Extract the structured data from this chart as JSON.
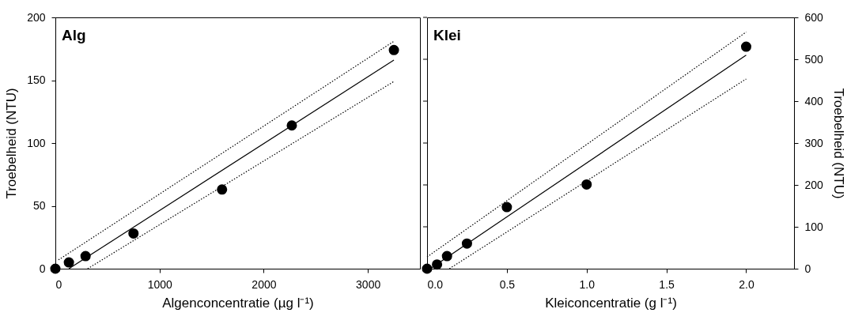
{
  "chart_data": [
    {
      "type": "scatter",
      "title": "Alg",
      "xlabel": "Algenconcentratie (µg l⁻¹)",
      "ylabel": "Troebelheid (NTU)",
      "xlim": [
        0,
        3500
      ],
      "ylim": [
        0,
        200
      ],
      "xticks": [
        0,
        1000,
        2000,
        3000
      ],
      "yticks": [
        0,
        50,
        100,
        150,
        200
      ],
      "grid": false,
      "series": [
        {
          "color": "#000000",
          "marker": "circle",
          "x": [
            0,
            130,
            290,
            750,
            1600,
            2270,
            3250
          ],
          "values": [
            0,
            5,
            10,
            28,
            63,
            114,
            174
          ]
        },
        {
          "type": "line",
          "color": "#000000",
          "line_style": "solid",
          "marker": "none",
          "x": [
            130,
            3250
          ],
          "values": [
            0,
            166
          ]
        },
        {
          "type": "line",
          "color": "#000000",
          "line_style": "dotted",
          "marker": "none",
          "x": [
            30,
            3250
          ],
          "values": [
            7,
            181
          ]
        },
        {
          "type": "line",
          "color": "#000000",
          "line_style": "dotted",
          "marker": "none",
          "x": [
            310,
            3250
          ],
          "values": [
            0,
            149
          ]
        }
      ]
    },
    {
      "type": "scatter",
      "title": "Klei",
      "xlabel": "Kleiconcentratie (g l⁻¹)",
      "y2label": "Troebelheid (NTU)",
      "xlim": [
        0,
        2.3
      ],
      "y2lim": [
        0,
        600
      ],
      "xticks": [
        {
          "value": 0,
          "label": "0.0"
        },
        0.5,
        {
          "value": 1,
          "label": "1.0"
        },
        1.5,
        {
          "value": 2,
          "label": "2.0"
        }
      ],
      "y2ticks": [
        0,
        100,
        200,
        300,
        400,
        500,
        600
      ],
      "grid": false,
      "series": [
        {
          "axis": "y2",
          "color": "#000000",
          "marker": "circle",
          "x": [
            0,
            0.0625,
            0.125,
            0.25,
            0.5,
            1.0,
            2.0
          ],
          "values": [
            0,
            10,
            30,
            60,
            147,
            201,
            530
          ]
        },
        {
          "type": "line",
          "axis": "y2",
          "color": "#000000",
          "line_style": "solid",
          "marker": "none",
          "x": [
            0.02,
            2.0
          ],
          "values": [
            0,
            510
          ]
        },
        {
          "type": "line",
          "axis": "y2",
          "color": "#000000",
          "line_style": "dotted",
          "marker": "none",
          "x": [
            0,
            2.0
          ],
          "values": [
            28,
            565
          ]
        },
        {
          "type": "line",
          "axis": "y2",
          "color": "#000000",
          "line_style": "dotted",
          "marker": "none",
          "x": [
            0.14,
            2.0
          ],
          "values": [
            0,
            453
          ]
        }
      ]
    }
  ]
}
